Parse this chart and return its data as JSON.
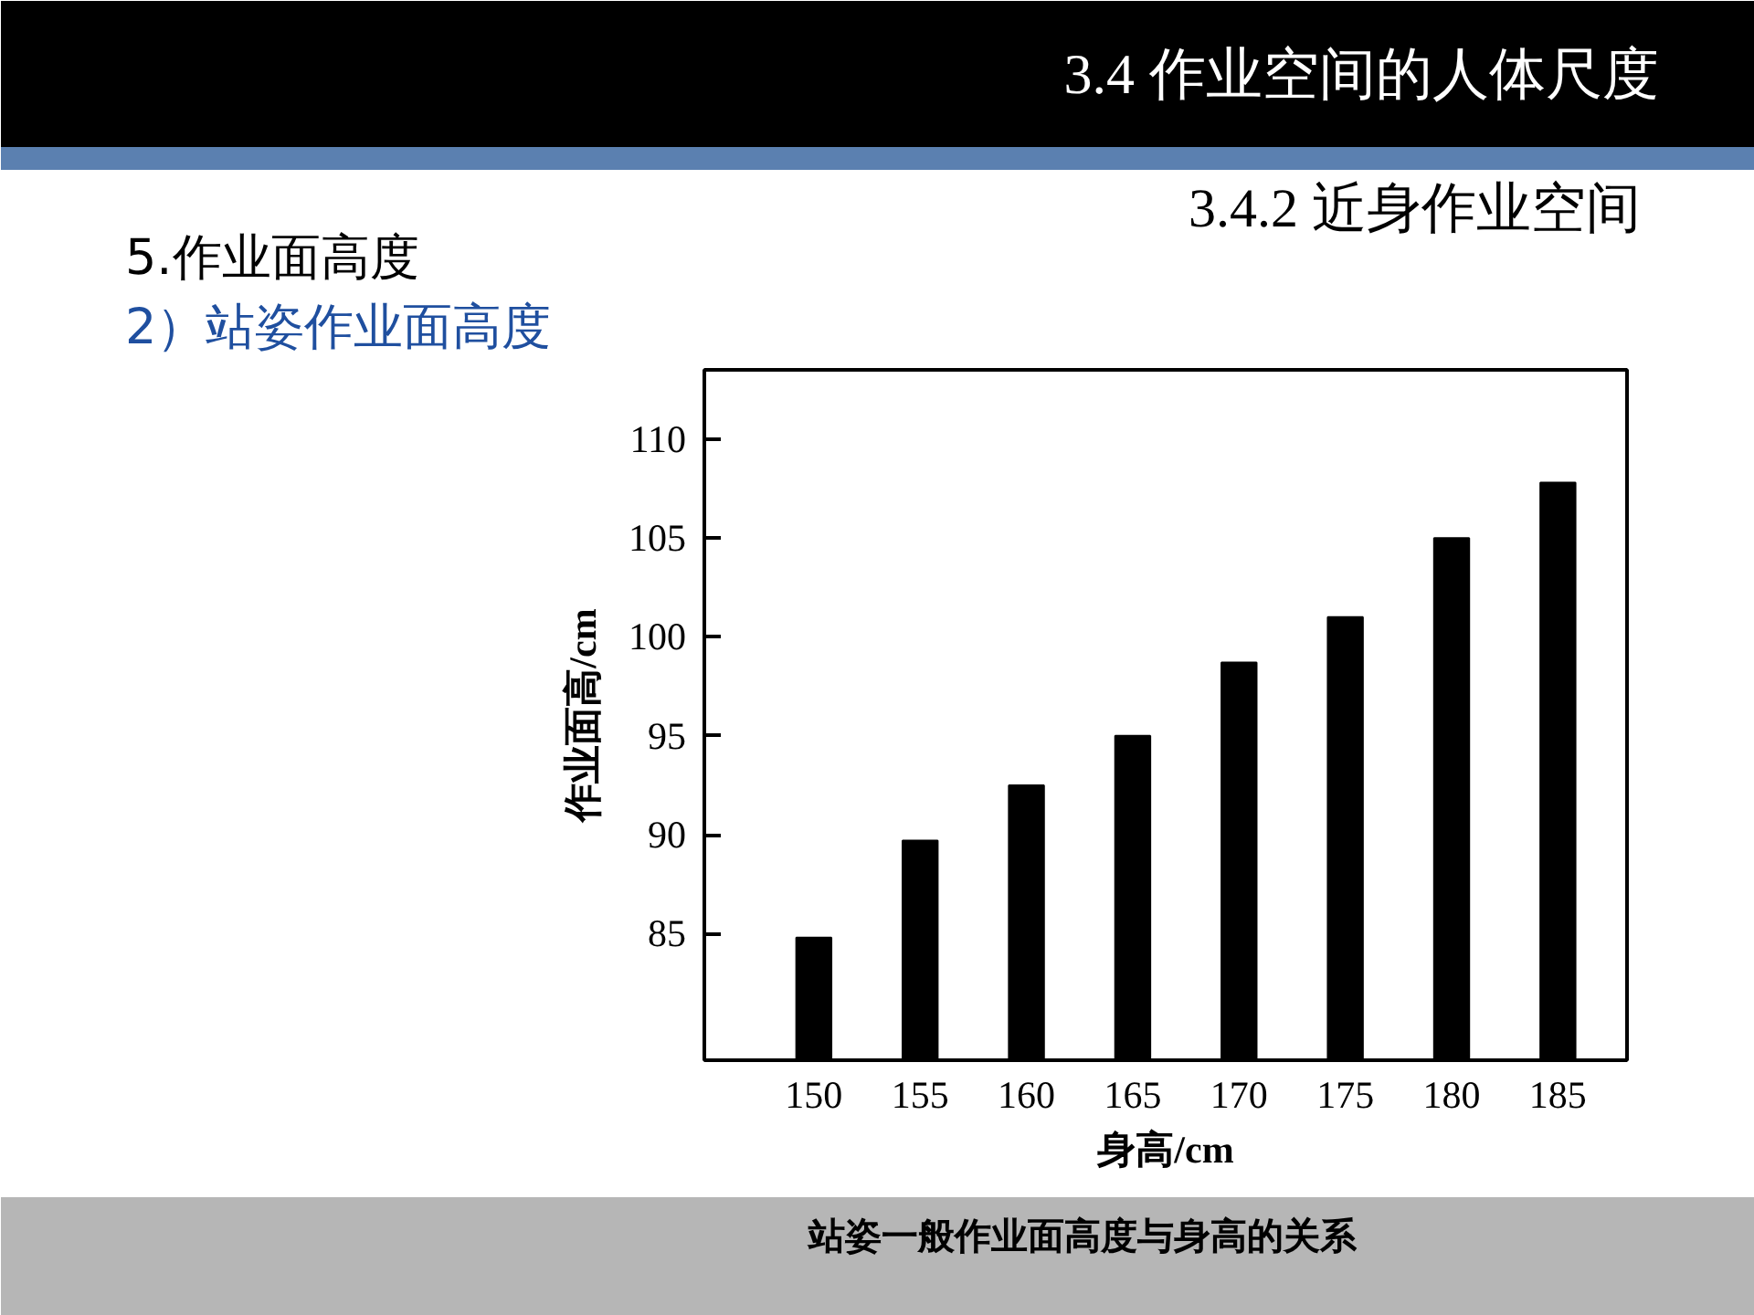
{
  "chart_data": {
    "type": "bar",
    "title": "3.4  作业空间的人体尺度",
    "subtitle": "3.4.2  近身作业空间",
    "xlabel": "身高/cm",
    "ylabel": "作业面高/cm",
    "categories": [
      "150",
      "155",
      "160",
      "165",
      "170",
      "175",
      "180",
      "185"
    ],
    "values": [
      84.8,
      89.7,
      92.5,
      95,
      98.7,
      101,
      105,
      107.8
    ],
    "color": "#000000",
    "ylim": [
      78.6,
      113.5
    ],
    "yticks": [
      85,
      90,
      95,
      100,
      105,
      110
    ],
    "annotations": [
      "5.作业面高度",
      "2）站姿作业面高度",
      "站姿一般作业面高度与身高的关系"
    ]
  }
}
